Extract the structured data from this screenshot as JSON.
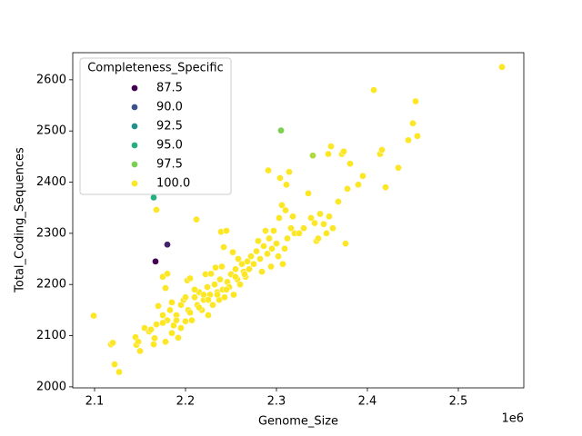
{
  "chart_data": {
    "type": "scatter",
    "x_label": "Genome_Size",
    "y_label": "Total_Coding_Sequences",
    "x_offset_label": "1e6",
    "xlim": [
      2076000,
      2572000
    ],
    "ylim": [
      1998,
      2653
    ],
    "xticks": [
      {
        "value": 2100000,
        "label": "2.1"
      },
      {
        "value": 2200000,
        "label": "2.2"
      },
      {
        "value": 2300000,
        "label": "2.3"
      },
      {
        "value": 2400000,
        "label": "2.4"
      },
      {
        "value": 2500000,
        "label": "2.5"
      }
    ],
    "yticks": [
      2000,
      2100,
      2200,
      2300,
      2400,
      2500,
      2600
    ],
    "legend": {
      "title": "Completeness_Specific",
      "position": "upper left",
      "entries": [
        {
          "value": 87.5,
          "label": "87.5",
          "color": "#440154"
        },
        {
          "value": 90,
          "label": "90.0",
          "color": "#3b528b"
        },
        {
          "value": 92.5,
          "label": "92.5",
          "color": "#21918c"
        },
        {
          "value": 95,
          "label": "95.0",
          "color": "#27ad81"
        },
        {
          "value": 97.5,
          "label": "97.5",
          "color": "#7ad151"
        },
        {
          "value": 100,
          "label": "100.0",
          "color": "#fde725"
        }
      ]
    },
    "x": [
      2167000,
      2180000,
      2165000,
      2305000,
      2340000,
      2099000,
      2118000,
      2120000,
      2122000,
      2127000,
      2145000,
      2146000,
      2148000,
      2150000,
      2155000,
      2160000,
      2162000,
      2165000,
      2166000,
      2168000,
      2170000,
      2168000,
      2175000,
      2180000,
      2178000,
      2175000,
      2178000,
      2180000,
      2183000,
      2185000,
      2187000,
      2190000,
      2192000,
      2195000,
      2198000,
      2200000,
      2202000,
      2205000,
      2203000,
      2207000,
      2210000,
      2212000,
      2213000,
      2215000,
      2218000,
      2220000,
      2222000,
      2224000,
      2225000,
      2227000,
      2228000,
      2230000,
      2232000,
      2233000,
      2235000,
      2237000,
      2238000,
      2239000,
      2240000,
      2241000,
      2242000,
      2243000,
      2245000,
      2246000,
      2248000,
      2250000,
      2252000,
      2253000,
      2255000,
      2257000,
      2258000,
      2260000,
      2262000,
      2264000,
      2266000,
      2268000,
      2270000,
      2272000,
      2275000,
      2278000,
      2280000,
      2282000,
      2284000,
      2286000,
      2288000,
      2290000,
      2291000,
      2292000,
      2294000,
      2295000,
      2297000,
      2300000,
      2302000,
      2303000,
      2304000,
      2306000,
      2307000,
      2309000,
      2310000,
      2311000,
      2312000,
      2314000,
      2316000,
      2318000,
      2320000,
      2325000,
      2330000,
      2335000,
      2338000,
      2342000,
      2344000,
      2346000,
      2348000,
      2352000,
      2355000,
      2357000,
      2358000,
      2360000,
      2362000,
      2368000,
      2372000,
      2374000,
      2376000,
      2378000,
      2381000,
      2390000,
      2395000,
      2407000,
      2414000,
      2416000,
      2420000,
      2434000,
      2445000,
      2450000,
      2453000,
      2455000,
      2548000,
      2190000,
      2195000,
      2205000,
      2215000,
      2225000,
      2235000,
      2245000,
      2255000,
      2265000,
      2175000,
      2185000,
      2200000,
      2210000,
      2220000
    ],
    "y": [
      2245,
      2278,
      2370,
      2501,
      2452,
      2139,
      2083,
      2086,
      2044,
      2029,
      2097,
      2082,
      2088,
      2070,
      2115,
      2108,
      2112,
      2083,
      2095,
      2122,
      2158,
      2346,
      2215,
      2221,
      2193,
      2140,
      2088,
      2130,
      2150,
      2165,
      2120,
      2140,
      2096,
      2160,
      2170,
      2128,
      2208,
      2212,
      2150,
      2130,
      2175,
      2327,
      2160,
      2185,
      2150,
      2170,
      2220,
      2195,
      2140,
      2180,
      2221,
      2160,
      2200,
      2233,
      2185,
      2170,
      2210,
      2303,
      2235,
      2190,
      2273,
      2175,
      2305,
      2205,
      2195,
      2220,
      2263,
      2180,
      2230,
      2210,
      2250,
      2200,
      2240,
      2225,
      2215,
      2245,
      2230,
      2255,
      2240,
      2265,
      2285,
      2250,
      2225,
      2275,
      2305,
      2260,
      2423,
      2290,
      2235,
      2270,
      2305,
      2280,
      2255,
      2330,
      2408,
      2355,
      2240,
      2270,
      2345,
      2395,
      2290,
      2420,
      2310,
      2333,
      2300,
      2300,
      2310,
      2378,
      2330,
      2320,
      2285,
      2290,
      2338,
      2318,
      2300,
      2455,
      2333,
      2470,
      2310,
      2362,
      2455,
      2460,
      2280,
      2387,
      2436,
      2395,
      2412,
      2580,
      2455,
      2463,
      2390,
      2428,
      2482,
      2515,
      2558,
      2490,
      2625,
      2130,
      2115,
      2145,
      2155,
      2170,
      2180,
      2190,
      2215,
      2220,
      2125,
      2105,
      2175,
      2190,
      2180
    ],
    "hue": [
      87.5,
      88.5,
      95,
      97.5,
      98.5,
      100,
      100,
      100,
      100,
      100,
      100,
      100,
      100,
      100,
      100,
      100,
      100,
      100,
      100,
      100,
      100,
      100,
      100,
      100,
      100,
      100,
      100,
      100,
      100,
      100,
      100,
      100,
      100,
      100,
      100,
      100,
      100,
      100,
      100,
      100,
      100,
      100,
      100,
      100,
      100,
      100,
      100,
      100,
      100,
      100,
      100,
      100,
      100,
      100,
      100,
      100,
      100,
      100,
      100,
      100,
      100,
      100,
      100,
      100,
      100,
      100,
      100,
      100,
      100,
      100,
      100,
      100,
      100,
      100,
      100,
      100,
      100,
      100,
      100,
      100,
      100,
      100,
      100,
      100,
      100,
      100,
      100,
      100,
      100,
      100,
      100,
      100,
      100,
      100,
      100,
      100,
      100,
      100,
      100,
      100,
      100,
      100,
      100,
      100,
      100,
      100,
      100,
      100,
      100,
      100,
      100,
      100,
      100,
      100,
      100,
      100,
      100,
      100,
      100,
      100,
      100,
      100,
      100,
      100,
      100,
      100,
      100,
      100,
      100,
      100,
      100,
      100,
      100,
      100,
      100,
      100,
      100,
      100,
      100,
      100,
      100,
      100,
      100,
      100,
      100,
      100,
      100,
      100,
      100,
      100,
      100
    ]
  }
}
